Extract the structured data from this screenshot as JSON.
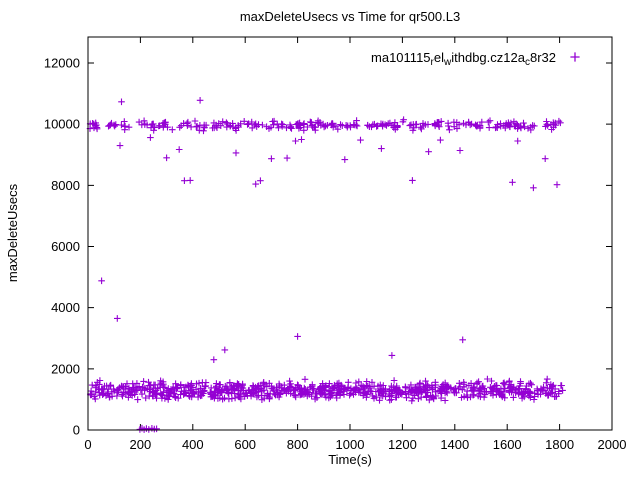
{
  "chart_data": {
    "type": "scatter",
    "title": "maxDeleteUsecs vs Time for qr500.L3",
    "xlabel": "Time(s)",
    "ylabel": "maxDeleteUsecs",
    "x_range": [
      0,
      2000
    ],
    "y_range": [
      0,
      12850
    ],
    "x_ticks": [
      0,
      200,
      400,
      600,
      800,
      1000,
      1200,
      1400,
      1600,
      1800,
      2000
    ],
    "y_ticks": [
      0,
      2000,
      4000,
      6000,
      8000,
      10000,
      12000
    ],
    "grid": "off",
    "legend_position": "top-right-inside",
    "marker": "plus",
    "point_color": "#9400d3",
    "legend": {
      "label_plain": "ma101115_rel_withdbg.cz12a_c8r32",
      "segments": [
        {
          "text": "ma101115",
          "sub": false
        },
        {
          "text": "r",
          "sub": true
        },
        {
          "text": "el",
          "sub": false
        },
        {
          "text": "w",
          "sub": true
        },
        {
          "text": "ithdbg.cz12a",
          "sub": false
        },
        {
          "text": "c",
          "sub": true
        },
        {
          "text": "8r32",
          "sub": false
        }
      ]
    },
    "series": [
      {
        "name": "ma101115_rel_withdbg.cz12a_c8r32",
        "bands": [
          {
            "desc": "dense low band ~950-1950 usec across full time range",
            "count": 850,
            "x_min": 5,
            "x_max": 1812,
            "y_center": 1310,
            "y_spread": 280,
            "y_min": 900,
            "y_max": 1950,
            "seed": 1337
          },
          {
            "desc": "dense high band ~9500-10300 usec across full time range",
            "count": 280,
            "x_min": 5,
            "x_max": 1812,
            "y_center": 9960,
            "y_spread": 150,
            "y_min": 9480,
            "y_max": 10320,
            "seed": 77
          }
        ],
        "outliers": [
          [
            52,
            4880
          ],
          [
            112,
            3650
          ],
          [
            122,
            9300
          ],
          [
            128,
            10730
          ],
          [
            198,
            20
          ],
          [
            206,
            60
          ],
          [
            214,
            12
          ],
          [
            223,
            45
          ],
          [
            232,
            18
          ],
          [
            244,
            55
          ],
          [
            253,
            28
          ],
          [
            262,
            38
          ],
          [
            238,
            9560
          ],
          [
            300,
            8900
          ],
          [
            348,
            9170
          ],
          [
            368,
            8150
          ],
          [
            390,
            8160
          ],
          [
            428,
            10780
          ],
          [
            480,
            2300
          ],
          [
            522,
            2620
          ],
          [
            565,
            9060
          ],
          [
            640,
            8040
          ],
          [
            658,
            8150
          ],
          [
            700,
            8870
          ],
          [
            760,
            8890
          ],
          [
            792,
            9450
          ],
          [
            800,
            3060
          ],
          [
            815,
            9500
          ],
          [
            980,
            8840
          ],
          [
            1040,
            9480
          ],
          [
            1120,
            9200
          ],
          [
            1160,
            2440
          ],
          [
            1238,
            8160
          ],
          [
            1300,
            9100
          ],
          [
            1345,
            9480
          ],
          [
            1420,
            9140
          ],
          [
            1430,
            2950
          ],
          [
            1620,
            8100
          ],
          [
            1640,
            9450
          ],
          [
            1700,
            7920
          ],
          [
            1745,
            8870
          ],
          [
            1790,
            8020
          ]
        ]
      }
    ]
  }
}
